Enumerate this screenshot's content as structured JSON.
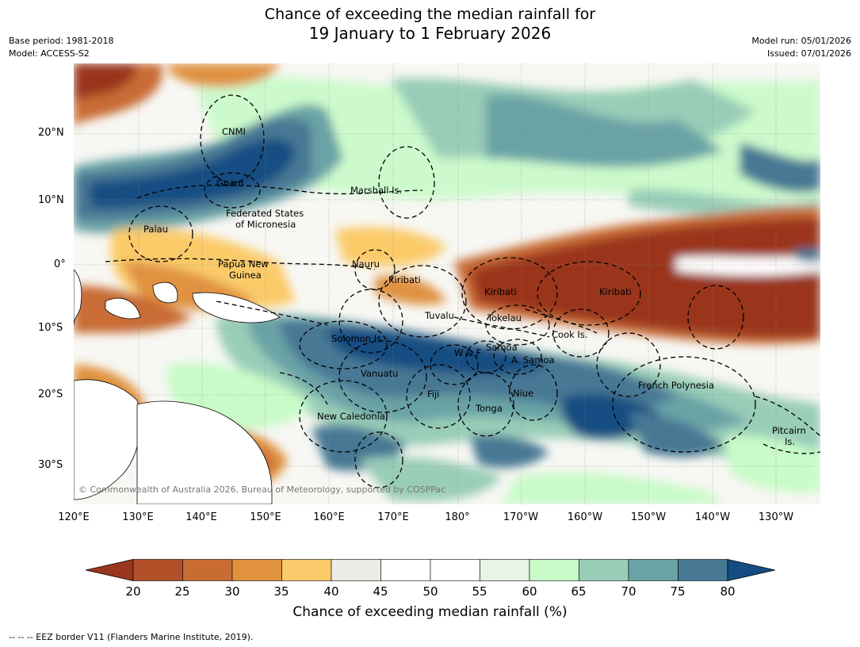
{
  "title": {
    "line1": "Chance of exceeding the median rainfall for",
    "line2": "19 January to 1 February 2026"
  },
  "meta": {
    "base_period": "Base period: 1981-2018",
    "model": "Model: ACCESS-S2",
    "model_run": "Model run: 05/01/2026",
    "issued": "Issued: 07/01/2026"
  },
  "map": {
    "lat_labels": [
      "20°N",
      "10°N",
      "0°",
      "10°S",
      "20°S",
      "30°S"
    ],
    "lon_labels": [
      "120°E",
      "130°E",
      "140°E",
      "150°E",
      "160°E",
      "170°E",
      "180°",
      "170°W",
      "160°W",
      "150°W",
      "140°W",
      "130°W"
    ],
    "regions": {
      "cnmi": "CNMI",
      "guam": "Guam",
      "marshall": "Marshall Is.",
      "fsm_1": "Federated States",
      "fsm_2": "of Micronesia",
      "palau": "Palau",
      "png_1": "Papua New",
      "png_2": "Guinea",
      "nauru": "Nauru",
      "kiribati_w": "Kiribati",
      "kiribati_c": "Kiribati",
      "kiribati_e": "Kiribati",
      "tuvalu": "Tuvalu",
      "tokelau": "Tokelau",
      "cook": "Cook Is.",
      "solomon": "Solomon Is.",
      "wf": "W & F",
      "samoa": "Samoa",
      "asamoa": "A. Samoa",
      "vanuatu": "Vanuatu",
      "fiji": "Fiji",
      "niue": "Niue",
      "tonga": "Tonga",
      "frpoly": "French Polynesia",
      "newcal": "New Caledonia",
      "pitcairn_1": "Pitcairn",
      "pitcairn_2": "Is."
    },
    "copyright": "© Commonwealth of Australia 2026, Bureau of Meteorology, supported by COSPPac",
    "colors": {
      "land": "#ffffff",
      "eez": "#000000"
    }
  },
  "colorbar": {
    "ticks": [
      "20",
      "25",
      "30",
      "35",
      "40",
      "45",
      "50",
      "55",
      "60",
      "65",
      "70",
      "75",
      "80"
    ],
    "colors": [
      "#9a361c",
      "#b14f28",
      "#c96c34",
      "#e0923f",
      "#fbcb6b",
      "#ecebe6",
      "#ffffff",
      "#ffffff",
      "#e8f5e6",
      "#c8fbc8",
      "#9acdb8",
      "#6aa3a6",
      "#467894",
      "#144d82"
    ],
    "label": "Chance of exceeding median rainfall (%)"
  },
  "footnote": "--  --  -- EEZ border V11 (Flanders Marine Institute, 2019)."
}
